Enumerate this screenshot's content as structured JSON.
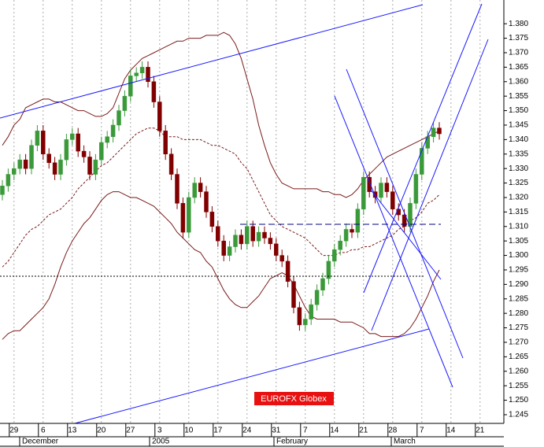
{
  "chart_data": {
    "type": "candlestick",
    "annotation": "EUROFX Globex",
    "categories": [
      null,
      null,
      "29",
      null,
      null,
      null,
      null,
      "6",
      null,
      null,
      null,
      null,
      "13",
      null,
      null,
      null,
      null,
      "20",
      null,
      null,
      null,
      null,
      "27",
      null,
      null,
      null,
      null,
      "3",
      null,
      null,
      null,
      null,
      "10",
      null,
      null,
      null,
      null,
      "17",
      null,
      null,
      null,
      null,
      "24",
      null,
      null,
      null,
      null,
      "31",
      null,
      null,
      null,
      null,
      "7",
      null,
      null,
      null,
      null,
      "14",
      null,
      null,
      null,
      null,
      "21",
      null,
      null,
      null,
      null,
      "28",
      null,
      null,
      null,
      null,
      "7",
      null,
      null,
      null,
      null,
      "14",
      null,
      null,
      null,
      null,
      "21"
    ],
    "months": [
      "December",
      "2005",
      "February",
      "March"
    ],
    "open": [
      1.321,
      1.324,
      1.328,
      1.33,
      1.333,
      1.33,
      1.338,
      1.343,
      1.335,
      1.332,
      1.328,
      1.333,
      1.34,
      1.342,
      1.336,
      1.334,
      1.328,
      1.333,
      1.339,
      1.341,
      1.345,
      1.35,
      1.355,
      1.362,
      1.363,
      1.365,
      1.36,
      1.353,
      1.343,
      1.335,
      1.328,
      1.318,
      1.308,
      1.32,
      1.325,
      1.322,
      1.315,
      1.31,
      1.305,
      1.3,
      1.303,
      1.307,
      1.304,
      1.31,
      1.305,
      1.308,
      1.306,
      1.304,
      1.3,
      1.298,
      1.291,
      1.282,
      1.276,
      1.278,
      1.283,
      1.288,
      1.292,
      1.298,
      1.302,
      1.305,
      1.309,
      1.308,
      1.316,
      1.327,
      1.322,
      1.32,
      1.325,
      1.322,
      1.316,
      1.314,
      1.31,
      1.318,
      1.328,
      1.337,
      1.341,
      1.344,
      null,
      null,
      null,
      null,
      null,
      null,
      null
    ],
    "high": [
      1.326,
      1.33,
      1.332,
      1.335,
      1.335,
      1.34,
      1.345,
      1.345,
      1.337,
      1.334,
      1.335,
      1.342,
      1.344,
      1.344,
      1.338,
      1.336,
      1.335,
      1.341,
      1.343,
      1.347,
      1.352,
      1.357,
      1.364,
      1.365,
      1.367,
      1.367,
      1.362,
      1.355,
      1.345,
      1.337,
      1.33,
      1.32,
      1.322,
      1.327,
      1.327,
      1.324,
      1.317,
      1.312,
      1.307,
      1.305,
      1.309,
      1.309,
      1.312,
      1.312,
      1.31,
      1.31,
      1.308,
      1.306,
      1.302,
      1.3,
      1.293,
      1.284,
      1.28,
      1.285,
      1.29,
      1.294,
      1.3,
      1.304,
      1.307,
      1.311,
      1.311,
      1.318,
      1.329,
      1.329,
      1.324,
      1.327,
      1.327,
      1.324,
      1.318,
      1.316,
      1.32,
      1.33,
      1.339,
      1.343,
      1.346,
      1.346,
      null,
      null,
      null,
      null,
      null,
      null,
      null
    ],
    "low": [
      1.319,
      1.322,
      1.326,
      1.328,
      1.328,
      1.328,
      1.336,
      1.333,
      1.33,
      1.326,
      1.326,
      1.331,
      1.338,
      1.334,
      1.332,
      1.326,
      1.326,
      1.331,
      1.337,
      1.339,
      1.343,
      1.348,
      1.353,
      1.36,
      1.361,
      1.358,
      1.351,
      1.341,
      1.333,
      1.326,
      1.316,
      1.306,
      1.306,
      1.318,
      1.32,
      1.313,
      1.308,
      1.303,
      1.298,
      1.298,
      1.301,
      1.302,
      1.302,
      1.303,
      1.303,
      1.304,
      1.302,
      1.298,
      1.296,
      1.289,
      1.28,
      1.274,
      1.274,
      1.276,
      1.281,
      1.286,
      1.29,
      1.296,
      1.3,
      1.303,
      1.306,
      1.306,
      1.314,
      1.32,
      1.318,
      1.318,
      1.32,
      1.314,
      1.312,
      1.308,
      1.308,
      1.316,
      1.326,
      1.335,
      1.339,
      1.34,
      null,
      null,
      null,
      null,
      null,
      null,
      null
    ],
    "close": [
      1.324,
      1.328,
      1.33,
      1.333,
      1.33,
      1.338,
      1.343,
      1.335,
      1.332,
      1.328,
      1.333,
      1.34,
      1.342,
      1.336,
      1.334,
      1.328,
      1.333,
      1.339,
      1.341,
      1.345,
      1.35,
      1.355,
      1.362,
      1.363,
      1.365,
      1.36,
      1.353,
      1.343,
      1.335,
      1.328,
      1.318,
      1.308,
      1.32,
      1.325,
      1.322,
      1.315,
      1.31,
      1.305,
      1.3,
      1.303,
      1.307,
      1.304,
      1.31,
      1.305,
      1.308,
      1.306,
      1.304,
      1.3,
      1.298,
      1.291,
      1.282,
      1.276,
      1.278,
      1.283,
      1.288,
      1.292,
      1.298,
      1.302,
      1.305,
      1.309,
      1.308,
      1.316,
      1.327,
      1.322,
      1.32,
      1.325,
      1.322,
      1.316,
      1.314,
      1.31,
      1.318,
      1.328,
      1.337,
      1.341,
      1.344,
      1.342,
      null,
      null,
      null,
      null,
      null,
      null,
      null
    ],
    "up_color": "#3a9a3a",
    "down_color": "#800000",
    "bands": {
      "color": "#7a1a1a",
      "upper": [
        1.338,
        1.341,
        1.345,
        1.347,
        1.351,
        1.352,
        1.353,
        1.354,
        1.354,
        1.353,
        1.353,
        1.352,
        1.351,
        1.35,
        1.35,
        1.349,
        1.348,
        1.348,
        1.349,
        1.351,
        1.356,
        1.361,
        1.364,
        1.366,
        1.368,
        1.369,
        1.37,
        1.371,
        1.372,
        1.373,
        1.374,
        1.374,
        1.375,
        1.375,
        1.375,
        1.376,
        1.376,
        1.376,
        1.377,
        1.376,
        1.373,
        1.368,
        1.361,
        1.354,
        1.345,
        1.338,
        1.332,
        1.328,
        1.325,
        1.324,
        1.323,
        1.323,
        1.323,
        1.323,
        1.323,
        1.322,
        1.322,
        1.321,
        1.321,
        1.32,
        1.321,
        1.323,
        1.326,
        1.328,
        1.33,
        1.332,
        1.334,
        1.335,
        1.336,
        1.337,
        1.338,
        1.339,
        1.34,
        1.341,
        1.342,
        1.343,
        null,
        null,
        null,
        null,
        null,
        null,
        null
      ],
      "middle": [
        1.296,
        1.298,
        1.301,
        1.304,
        1.307,
        1.309,
        1.31,
        1.312,
        1.314,
        1.315,
        1.316,
        1.318,
        1.32,
        1.323,
        1.325,
        1.327,
        1.329,
        1.331,
        1.332,
        1.334,
        1.336,
        1.338,
        1.34,
        1.342,
        1.343,
        1.344,
        1.344,
        1.343,
        1.341,
        1.341,
        1.341,
        1.34,
        1.34,
        1.34,
        1.34,
        1.339,
        1.338,
        1.338,
        1.337,
        1.336,
        1.335,
        1.332,
        1.33,
        1.326,
        1.322,
        1.318,
        1.314,
        1.312,
        1.31,
        1.309,
        1.308,
        1.307,
        1.306,
        1.304,
        1.302,
        1.3,
        1.3,
        1.3,
        1.301,
        1.301,
        1.302,
        1.302,
        1.303,
        1.303,
        1.304,
        1.305,
        1.306,
        1.307,
        1.309,
        1.31,
        1.312,
        1.313,
        1.315,
        1.318,
        1.319,
        1.321,
        null,
        null,
        null,
        null,
        null,
        null,
        null
      ],
      "lower": [
        1.271,
        1.273,
        1.274,
        1.274,
        1.276,
        1.278,
        1.28,
        1.282,
        1.285,
        1.29,
        1.296,
        1.301,
        1.305,
        1.308,
        1.311,
        1.313,
        1.316,
        1.319,
        1.321,
        1.322,
        1.322,
        1.321,
        1.32,
        1.32,
        1.319,
        1.318,
        1.317,
        1.315,
        1.313,
        1.311,
        1.308,
        1.306,
        1.304,
        1.302,
        1.301,
        1.298,
        1.296,
        1.292,
        1.288,
        1.285,
        1.283,
        1.282,
        1.282,
        1.284,
        1.286,
        1.289,
        1.292,
        1.293,
        1.294,
        1.293,
        1.29,
        1.286,
        1.282,
        1.279,
        1.278,
        1.278,
        1.278,
        1.278,
        1.277,
        1.277,
        1.277,
        1.276,
        1.275,
        1.273,
        1.273,
        1.272,
        1.272,
        1.272,
        1.272,
        1.273,
        1.275,
        1.278,
        1.282,
        1.286,
        1.291,
        1.295,
        null,
        null,
        null,
        null,
        null,
        null,
        null
      ]
    },
    "ylim": [
      1.242,
      1.3882
    ],
    "yticks": [
      1.245,
      {
        "value": 1.25,
        "label": "1.250"
      },
      1.255,
      {
        "value": 1.26,
        "label": "1.260"
      },
      1.265,
      {
        "value": 1.27,
        "label": "1.270"
      },
      1.275,
      {
        "value": 1.28,
        "label": "1.280"
      },
      1.285,
      {
        "value": 1.29,
        "label": "1.290"
      },
      1.295,
      {
        "value": 1.3,
        "label": "1.300"
      },
      1.305,
      {
        "value": 1.31,
        "label": "1.310"
      },
      1.315,
      {
        "value": 1.32,
        "label": "1.320"
      },
      1.325,
      {
        "value": 1.33,
        "label": "1.330"
      },
      1.335,
      {
        "value": 1.34,
        "label": "1.340"
      },
      1.345,
      {
        "value": 1.35,
        "label": "1.350"
      },
      1.355,
      {
        "value": 1.36,
        "label": "1.360"
      },
      1.365,
      {
        "value": 1.37,
        "label": "1.370"
      },
      1.375,
      {
        "value": 1.38,
        "label": "1.380"
      }
    ],
    "grid": true
  }
}
